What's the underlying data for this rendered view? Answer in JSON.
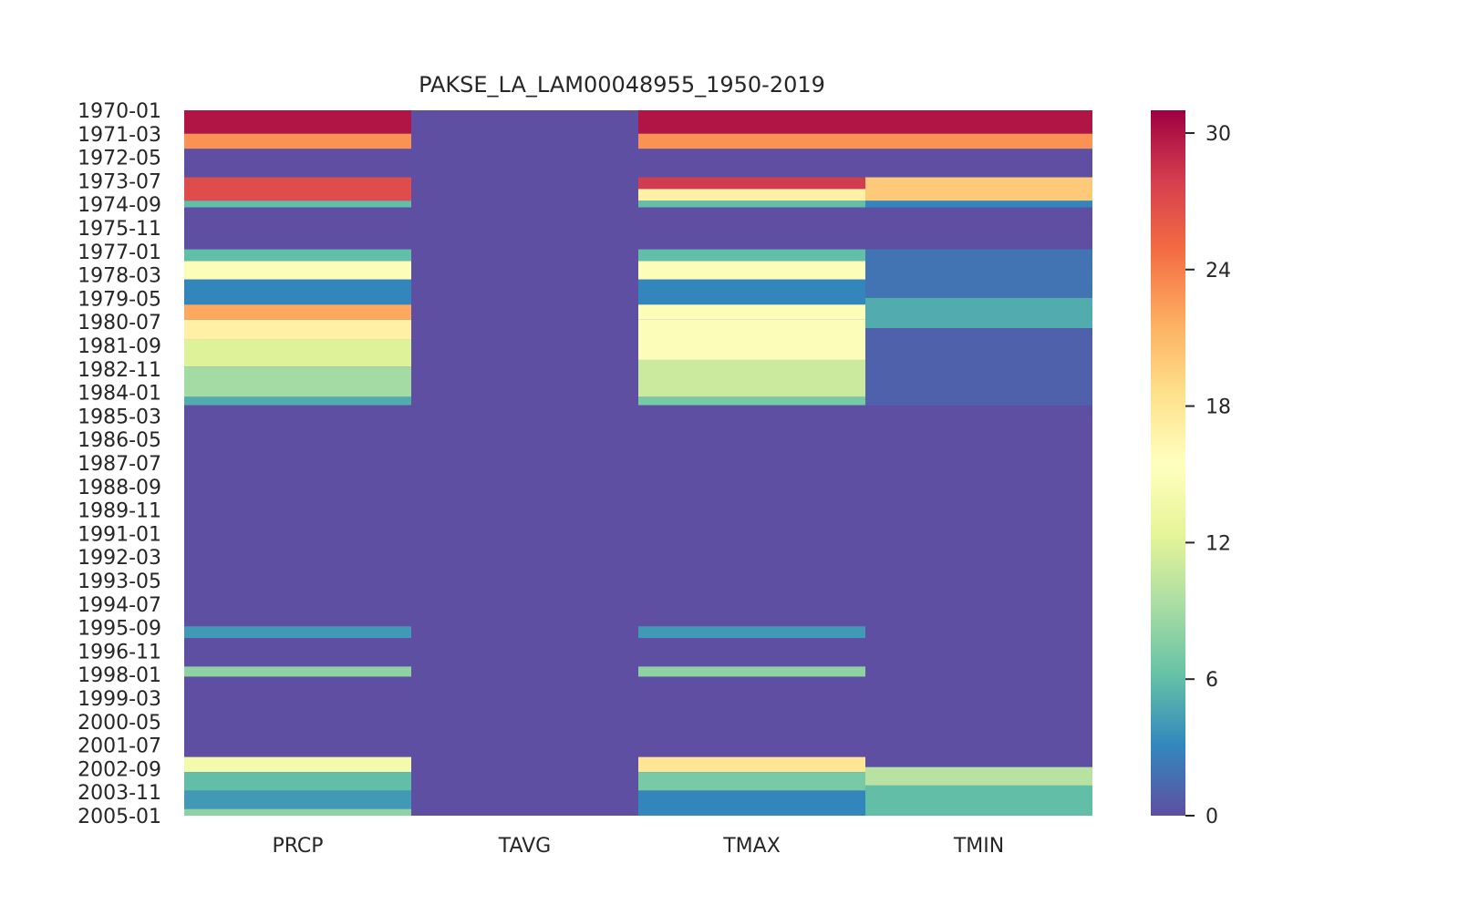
{
  "chart_data": {
    "type": "heatmap",
    "title": "PAKSE_LA_LAM00048955_1950-2019",
    "xlabel": "",
    "ylabel": "",
    "columns": [
      "PRCP",
      "TAVG",
      "TMAX",
      "TMIN"
    ],
    "row_start": "1970-01",
    "row_end": "2005-01",
    "row_count": 421,
    "y_tick_labels": [
      "1970-01",
      "1971-03",
      "1972-05",
      "1973-07",
      "1974-09",
      "1975-11",
      "1977-01",
      "1978-03",
      "1979-05",
      "1980-07",
      "1981-09",
      "1982-11",
      "1984-01",
      "1985-03",
      "1986-05",
      "1987-07",
      "1988-09",
      "1989-11",
      "1991-01",
      "1992-03",
      "1993-05",
      "1994-07",
      "1995-09",
      "1996-11",
      "1998-01",
      "1999-03",
      "2000-05",
      "2001-07",
      "2002-09",
      "2003-11",
      "2005-01"
    ],
    "colorbar": {
      "colormap": "Spectral_r",
      "vmin": 0,
      "vmax": 31,
      "ticks": [
        0,
        6,
        12,
        18,
        24,
        30
      ],
      "tick_labels": [
        "0",
        "6",
        "12",
        "18",
        "24",
        "30"
      ]
    },
    "bands": [
      {
        "column": "PRCP",
        "from": "1970-01",
        "to": "1971-02",
        "value": 30
      },
      {
        "column": "PRCP",
        "from": "1971-03",
        "to": "1971-11",
        "value": 23
      },
      {
        "column": "PRCP",
        "from": "1971-12",
        "to": "1973-04",
        "value": 0
      },
      {
        "column": "PRCP",
        "from": "1973-05",
        "to": "1974-06",
        "value": 27
      },
      {
        "column": "PRCP",
        "from": "1974-07",
        "to": "1974-10",
        "value": 6
      },
      {
        "column": "PRCP",
        "from": "1974-11",
        "to": "1976-11",
        "value": 0
      },
      {
        "column": "PRCP",
        "from": "1976-12",
        "to": "1977-06",
        "value": 6
      },
      {
        "column": "PRCP",
        "from": "1977-07",
        "to": "1978-05",
        "value": 15
      },
      {
        "column": "PRCP",
        "from": "1978-06",
        "to": "1979-08",
        "value": 3
      },
      {
        "column": "PRCP",
        "from": "1979-09",
        "to": "1980-05",
        "value": 22
      },
      {
        "column": "PRCP",
        "from": "1980-06",
        "to": "1981-05",
        "value": 17
      },
      {
        "column": "PRCP",
        "from": "1981-06",
        "to": "1982-09",
        "value": 12
      },
      {
        "column": "PRCP",
        "from": "1982-10",
        "to": "1984-03",
        "value": 9
      },
      {
        "column": "PRCP",
        "from": "1984-04",
        "to": "1984-08",
        "value": 5
      },
      {
        "column": "PRCP",
        "from": "1995-09",
        "to": "1996-03",
        "value": 4
      },
      {
        "column": "PRCP",
        "from": "1997-09",
        "to": "1998-02",
        "value": 8
      },
      {
        "column": "PRCP",
        "from": "2002-03",
        "to": "2002-11",
        "value": 14
      },
      {
        "column": "PRCP",
        "from": "2002-12",
        "to": "2003-10",
        "value": 6
      },
      {
        "column": "PRCP",
        "from": "2003-11",
        "to": "2004-09",
        "value": 4
      },
      {
        "column": "PRCP",
        "from": "2004-10",
        "to": "2005-01",
        "value": 8
      },
      {
        "column": "TMAX",
        "from": "1970-01",
        "to": "1971-02",
        "value": 30
      },
      {
        "column": "TMAX",
        "from": "1971-03",
        "to": "1971-11",
        "value": 23
      },
      {
        "column": "TMAX",
        "from": "1971-12",
        "to": "1973-04",
        "value": 0
      },
      {
        "column": "TMAX",
        "from": "1973-05",
        "to": "1973-11",
        "value": 28
      },
      {
        "column": "TMAX",
        "from": "1973-12",
        "to": "1974-06",
        "value": 17
      },
      {
        "column": "TMAX",
        "from": "1974-07",
        "to": "1974-10",
        "value": 6
      },
      {
        "column": "TMAX",
        "from": "1974-11",
        "to": "1976-11",
        "value": 0
      },
      {
        "column": "TMAX",
        "from": "1976-12",
        "to": "1977-06",
        "value": 6
      },
      {
        "column": "TMAX",
        "from": "1977-07",
        "to": "1978-05",
        "value": 15
      },
      {
        "column": "TMAX",
        "from": "1978-06",
        "to": "1979-08",
        "value": 3
      },
      {
        "column": "TMAX",
        "from": "1979-09",
        "to": "1980-05",
        "value": 15
      },
      {
        "column": "TMAX",
        "from": "1980-06",
        "to": "1982-05",
        "value": 15
      },
      {
        "column": "TMAX",
        "from": "1982-06",
        "to": "1984-03",
        "value": 11
      },
      {
        "column": "TMAX",
        "from": "1984-04",
        "to": "1984-08",
        "value": 7
      },
      {
        "column": "TMAX",
        "from": "1995-09",
        "to": "1996-03",
        "value": 4
      },
      {
        "column": "TMAX",
        "from": "1997-09",
        "to": "1998-02",
        "value": 8
      },
      {
        "column": "TMAX",
        "from": "2002-03",
        "to": "2002-11",
        "value": 18
      },
      {
        "column": "TMAX",
        "from": "2002-12",
        "to": "2003-10",
        "value": 7
      },
      {
        "column": "TMAX",
        "from": "2003-11",
        "to": "2005-01",
        "value": 3
      },
      {
        "column": "TMIN",
        "from": "1970-01",
        "to": "1971-02",
        "value": 30
      },
      {
        "column": "TMIN",
        "from": "1971-03",
        "to": "1971-11",
        "value": 23
      },
      {
        "column": "TMIN",
        "from": "1971-12",
        "to": "1973-04",
        "value": 0
      },
      {
        "column": "TMIN",
        "from": "1973-05",
        "to": "1974-06",
        "value": 20
      },
      {
        "column": "TMIN",
        "from": "1974-07",
        "to": "1974-10",
        "value": 3
      },
      {
        "column": "TMIN",
        "from": "1974-11",
        "to": "1976-11",
        "value": 0
      },
      {
        "column": "TMIN",
        "from": "1976-12",
        "to": "1979-04",
        "value": 2
      },
      {
        "column": "TMIN",
        "from": "1979-05",
        "to": "1980-10",
        "value": 5
      },
      {
        "column": "TMIN",
        "from": "1980-11",
        "to": "1984-08",
        "value": 1
      },
      {
        "column": "TMIN",
        "from": "2002-09",
        "to": "2003-07",
        "value": 10
      },
      {
        "column": "TMIN",
        "from": "2003-08",
        "to": "2005-01",
        "value": 6
      }
    ]
  }
}
